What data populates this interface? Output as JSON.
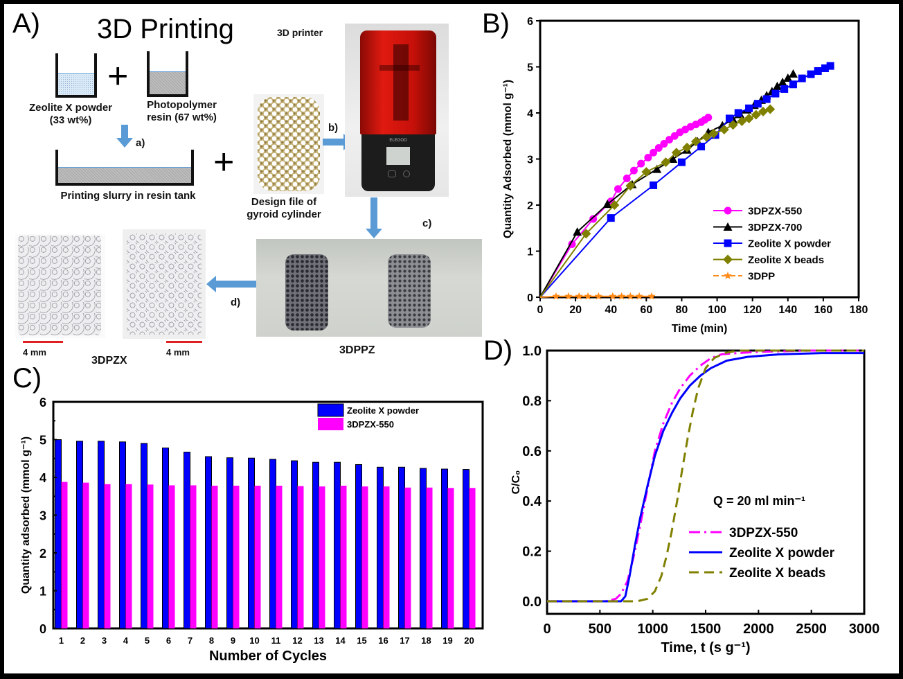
{
  "figure": {
    "panel_letters": {
      "a": "A)",
      "b": "B)",
      "c": "C)",
      "d": "D)"
    }
  },
  "schematic": {
    "title": "3D Printing",
    "printer_label": "3D printer",
    "zeolite_label_1": "Zeolite X powder",
    "zeolite_label_2": "(33 wt%)",
    "resin_label_1": "Photopolymer",
    "resin_label_2": "resin (67 wt%)",
    "slurry_label": "Printing slurry in resin tank",
    "design_label_1": "Design file of",
    "design_label_2": "gyroid cylinder",
    "step_a": "a)",
    "step_b": "b)",
    "step_c": "c)",
    "step_d": "d)",
    "plus": "+",
    "printer_brand": "ELEGOO",
    "scale_bar_1": "4 mm",
    "scale_bar_2": "4 mm",
    "product_3dpzx": "3DPZX",
    "product_3dppz": "3DPPZ",
    "colors": {
      "arrow": "#5b9bd5",
      "scale_bar": "#e02020",
      "printer_red": "#d0150c"
    }
  },
  "chart_data": [
    {
      "id": "B",
      "type": "line",
      "title": "",
      "xlabel": "Time (min)",
      "ylabel": "Quantity Adsorbed (mmol g⁻¹)",
      "xlim": [
        0,
        180
      ],
      "ylim": [
        0,
        6
      ],
      "xticks": [
        0,
        20,
        40,
        60,
        80,
        100,
        120,
        140,
        160,
        180
      ],
      "yticks": [
        0,
        1,
        2,
        3,
        4,
        5,
        6
      ],
      "legend_position": "lower-right",
      "series": [
        {
          "name": "3DPZX-550",
          "color": "#ff00ff",
          "marker": "circle",
          "x": [
            0,
            18,
            30,
            40,
            44,
            49,
            53,
            57,
            61,
            64,
            67,
            70,
            73,
            76,
            79,
            82,
            85,
            88,
            91,
            93,
            95
          ],
          "y": [
            0,
            1.15,
            1.7,
            2.08,
            2.35,
            2.58,
            2.75,
            2.9,
            3.03,
            3.14,
            3.24,
            3.33,
            3.42,
            3.5,
            3.58,
            3.64,
            3.7,
            3.75,
            3.8,
            3.85,
            3.9
          ]
        },
        {
          "name": "3DPZX-700",
          "color": "#000000",
          "marker": "triangle",
          "x": [
            0,
            21,
            38,
            52,
            66,
            75,
            83,
            89,
            95,
            103,
            109,
            113,
            117,
            121,
            125,
            128,
            131,
            134,
            137,
            140,
            143
          ],
          "y": [
            0,
            1.42,
            2.02,
            2.45,
            2.78,
            3.0,
            3.2,
            3.38,
            3.58,
            3.73,
            3.86,
            3.97,
            4.07,
            4.17,
            4.28,
            4.38,
            4.47,
            4.58,
            4.67,
            4.76,
            4.85
          ]
        },
        {
          "name": "Zeolite X powder",
          "color": "#0000ff",
          "marker": "square",
          "x": [
            0,
            40,
            64,
            80,
            91,
            99,
            107,
            112,
            118,
            123,
            128,
            133,
            138,
            143,
            148,
            153,
            157,
            161,
            164
          ],
          "y": [
            0,
            1.72,
            2.43,
            2.93,
            3.27,
            3.52,
            3.88,
            4.0,
            4.1,
            4.2,
            4.3,
            4.42,
            4.52,
            4.62,
            4.75,
            4.84,
            4.91,
            4.97,
            5.02
          ]
        },
        {
          "name": "Zeolite X beads",
          "color": "#808000",
          "marker": "diamond",
          "x": [
            0,
            26,
            42,
            51,
            60,
            71,
            77,
            83,
            88,
            94,
            98,
            104,
            109,
            114,
            118,
            122,
            126,
            130
          ],
          "y": [
            0,
            1.38,
            2.0,
            2.42,
            2.72,
            2.93,
            3.14,
            3.25,
            3.38,
            3.48,
            3.55,
            3.64,
            3.74,
            3.82,
            3.88,
            3.96,
            4.03,
            4.08
          ]
        },
        {
          "name": "3DPP",
          "color": "#ff8c1a",
          "marker": "star",
          "x": [
            0,
            9,
            16,
            22,
            27,
            33,
            41,
            46,
            51,
            56,
            63
          ],
          "y": [
            0,
            0.02,
            0.02,
            0.02,
            0.02,
            0.02,
            0.02,
            0.02,
            0.02,
            0.02,
            0.02
          ]
        }
      ]
    },
    {
      "id": "C",
      "type": "bar",
      "title": "",
      "xlabel": "Number of Cycles",
      "ylabel": "Quantity adsorbed (mmol g⁻¹)",
      "ylim": [
        0,
        6
      ],
      "yticks": [
        0,
        1,
        2,
        3,
        4,
        5,
        6
      ],
      "categories": [
        "1",
        "2",
        "3",
        "4",
        "5",
        "6",
        "7",
        "8",
        "9",
        "10",
        "11",
        "12",
        "13",
        "14",
        "15",
        "16",
        "17",
        "18",
        "19",
        "20"
      ],
      "legend_position": "top-right",
      "series": [
        {
          "name": "Zeolite X powder",
          "color": "#0000ff",
          "values": [
            5.0,
            4.96,
            4.96,
            4.94,
            4.9,
            4.78,
            4.67,
            4.55,
            4.52,
            4.51,
            4.48,
            4.44,
            4.4,
            4.4,
            4.34,
            4.27,
            4.27,
            4.24,
            4.22,
            4.21
          ]
        },
        {
          "name": "3DPZX-550",
          "color": "#ff00ff",
          "values": [
            3.88,
            3.86,
            3.82,
            3.82,
            3.81,
            3.79,
            3.79,
            3.78,
            3.78,
            3.78,
            3.78,
            3.77,
            3.76,
            3.78,
            3.76,
            3.76,
            3.73,
            3.73,
            3.72,
            3.72
          ]
        }
      ]
    },
    {
      "id": "D",
      "type": "line",
      "title": "",
      "xlabel": "Time, t (s g⁻¹)",
      "ylabel": "C/C₀",
      "xlim": [
        0,
        3000
      ],
      "ylim": [
        -0.05,
        1.0
      ],
      "xticks": [
        0,
        500,
        1000,
        1500,
        2000,
        2500,
        3000
      ],
      "yticks": [
        0.0,
        0.2,
        0.4,
        0.6,
        0.8,
        1.0
      ],
      "annotation": "Q = 20 ml min⁻¹",
      "legend_position": "lower-right",
      "series": [
        {
          "name": "3DPZX-550",
          "color": "#ff00ff",
          "style": "dash-dot",
          "x": [
            0,
            550,
            650,
            700,
            760,
            820,
            880,
            950,
            1020,
            1100,
            1180,
            1260,
            1350,
            1450,
            1550,
            1650,
            1800,
            2000,
            2500,
            3000
          ],
          "y": [
            0,
            0,
            0.01,
            0.03,
            0.08,
            0.18,
            0.3,
            0.45,
            0.6,
            0.71,
            0.79,
            0.85,
            0.9,
            0.94,
            0.97,
            0.985,
            0.99,
            0.995,
            1.0,
            1.0
          ]
        },
        {
          "name": "Zeolite X powder",
          "color": "#0000ff",
          "style": "solid",
          "x": [
            0,
            700,
            740,
            780,
            830,
            880,
            950,
            1020,
            1100,
            1180,
            1260,
            1350,
            1450,
            1550,
            1700,
            1900,
            2200,
            2600,
            3000
          ],
          "y": [
            0,
            0,
            0.02,
            0.1,
            0.22,
            0.33,
            0.46,
            0.58,
            0.68,
            0.75,
            0.81,
            0.86,
            0.9,
            0.93,
            0.96,
            0.975,
            0.985,
            0.99,
            0.99
          ]
        },
        {
          "name": "Zeolite X beads",
          "color": "#808000",
          "style": "dashed",
          "x": [
            0,
            850,
            950,
            1020,
            1080,
            1130,
            1180,
            1230,
            1280,
            1330,
            1380,
            1430,
            1500,
            1580,
            1680,
            1800,
            2000,
            3000
          ],
          "y": [
            0,
            0,
            0.01,
            0.04,
            0.1,
            0.18,
            0.28,
            0.4,
            0.53,
            0.65,
            0.76,
            0.85,
            0.93,
            0.97,
            0.99,
            1.0,
            1.0,
            1.0
          ]
        }
      ]
    }
  ]
}
